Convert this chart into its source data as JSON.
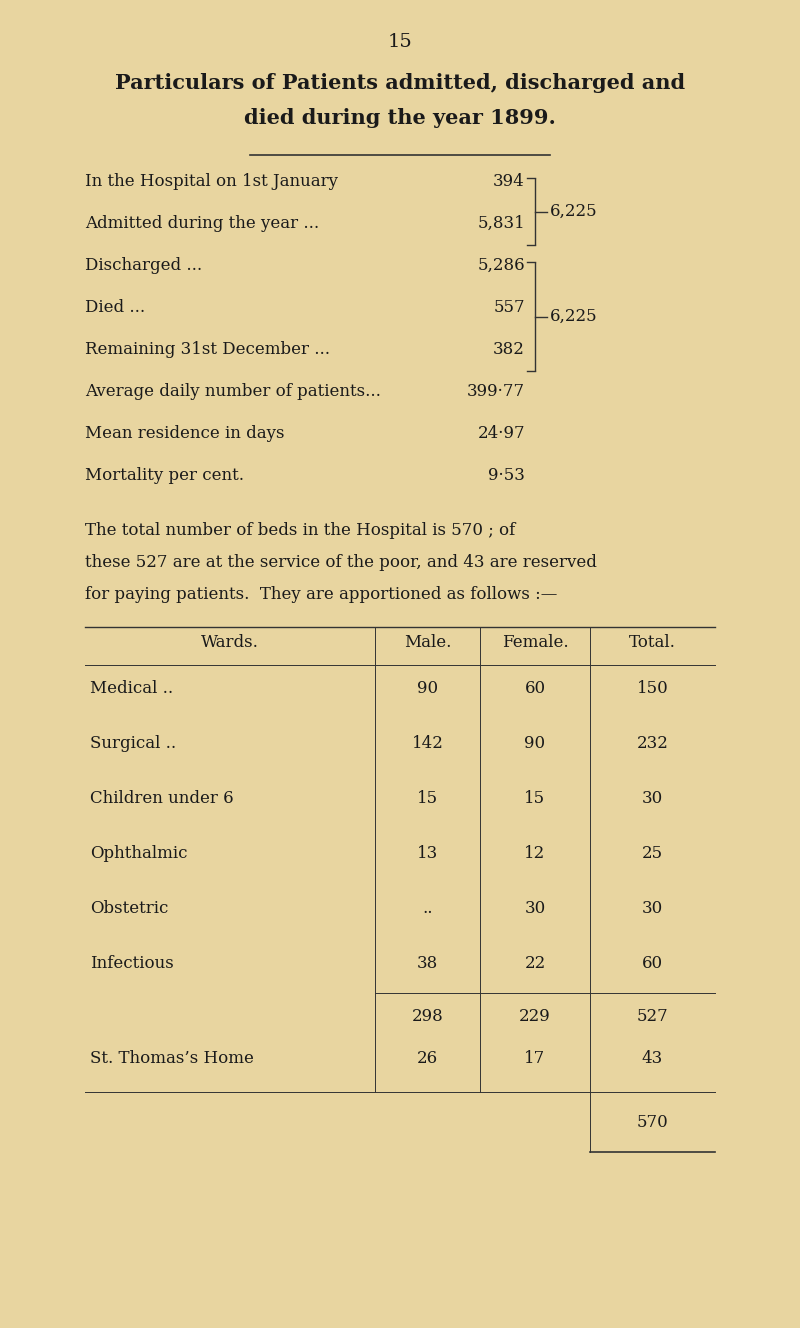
{
  "bg_color": "#e8d5a0",
  "page_number": "15",
  "title_line1": "Particulars of Patients admitted, discharged and",
  "title_line2": "died during the year 1899.",
  "stats": [
    {
      "label": "In the Hospital on 1st January",
      "dots": "...",
      "value": "394",
      "bracket_group": 1
    },
    {
      "label": "Admitted during the year ...",
      "dots": "...",
      "value": "5,831",
      "bracket_group": 1
    },
    {
      "label": "Discharged ...",
      "dots": "... ... ... ...",
      "value": "5,286",
      "bracket_group": 2
    },
    {
      "label": "Died ...",
      "dots": "... ... ... ... ...",
      "value": "557",
      "bracket_group": 2
    },
    {
      "label": "Remaining 31st December ...",
      "dots": "...",
      "value": "382",
      "bracket_group": 2
    },
    {
      "label": "Average daily number of patients...",
      "dots": "...",
      "value": "399·77",
      "bracket_group": 0
    },
    {
      "label": "Mean residence in days",
      "dots": "... ... ...",
      "value": "24·97",
      "bracket_group": 0
    },
    {
      "label": "Mortality per cent.",
      "dots": "... ... ... ...",
      "value": "9·53",
      "bracket_group": 0
    }
  ],
  "bracket_values": {
    "1": "6,225",
    "2": "6,225"
  },
  "para_text1": "The total number of beds in the Hospital is 570 ; of",
  "para_text2": "these 527 are at the service of the poor, and 43 are reserved",
  "para_text3": "for paying patients.  They are apportioned as follows :—",
  "table_headers": [
    "Wards.",
    "Male.",
    "Female.",
    "Total."
  ],
  "table_rows": [
    [
      "Medical ..",
      "..",
      "..",
      "90",
      "60",
      "150"
    ],
    [
      "Surgical ..",
      "..",
      "..",
      "142",
      "90",
      "232"
    ],
    [
      "Children under 6",
      "..",
      "",
      "15",
      "15",
      "30"
    ],
    [
      "Ophthalmic",
      "..",
      "..",
      "13",
      "12",
      "25"
    ],
    [
      "Obstetric",
      "..",
      "..",
      "..",
      "30",
      "30"
    ],
    [
      "Infectious",
      "..",
      "..",
      "38",
      "22",
      "60"
    ]
  ],
  "subtotal_row": [
    "",
    "",
    "",
    "298",
    "229",
    "527"
  ],
  "home_row": [
    "St. Thomas’s Home",
    "..",
    "",
    "26",
    "17",
    "43"
  ],
  "total_row": [
    "",
    "",
    "",
    "",
    "",
    "570"
  ],
  "text_color": "#1a1a1a",
  "line_color": "#333333",
  "title_fontsize": 15,
  "body_fontsize": 12,
  "table_fontsize": 12
}
